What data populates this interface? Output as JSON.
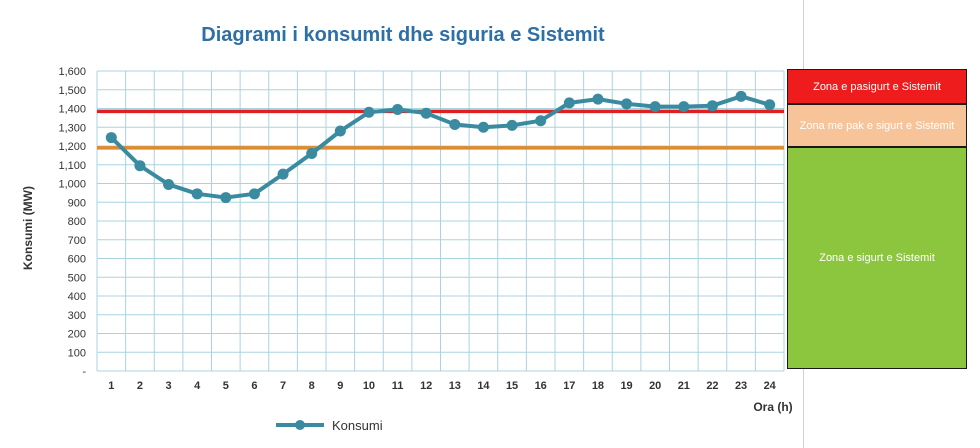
{
  "chart_data": {
    "type": "line",
    "title": "Diagrami i konsumit dhe siguria e Sistemit",
    "xlabel": "Ora (h)",
    "ylabel": "Konsumi (MW)",
    "categories": [
      "1",
      "2",
      "3",
      "4",
      "5",
      "6",
      "7",
      "8",
      "9",
      "10",
      "11",
      "12",
      "13",
      "14",
      "15",
      "16",
      "17",
      "18",
      "19",
      "20",
      "21",
      "22",
      "23",
      "24"
    ],
    "yticks": [
      "-",
      "100",
      "200",
      "300",
      "400",
      "500",
      "600",
      "700",
      "800",
      "900",
      "1,000",
      "1,100",
      "1,200",
      "1,300",
      "1,400",
      "1,500",
      "1,600"
    ],
    "ylim": [
      0,
      1600
    ],
    "series": [
      {
        "name": "Konsumi",
        "color": "#3a8aa0",
        "values": [
          1245,
          1095,
          995,
          945,
          925,
          945,
          1050,
          1160,
          1280,
          1380,
          1395,
          1375,
          1315,
          1300,
          1310,
          1335,
          1430,
          1450,
          1425,
          1410,
          1410,
          1415,
          1465,
          1420
        ]
      }
    ],
    "reference_lines": [
      {
        "value": 1385,
        "color": "#e02020"
      },
      {
        "value": 1190,
        "color": "#e08a2a"
      }
    ],
    "grid": true,
    "legend": "bottom"
  },
  "zones": [
    {
      "label": "Zona e pasigurt e Sistemit",
      "color": "#ee1c1c"
    },
    {
      "label": "Zona me pak e sigurt e Sistemit",
      "color": "#f7c49a"
    },
    {
      "label": "Zona e sigurt e Sistemit",
      "color": "#8cc63f"
    }
  ]
}
